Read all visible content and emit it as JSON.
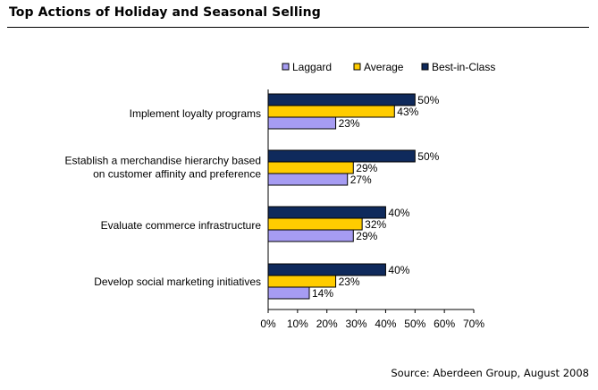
{
  "page": {
    "title": "Top Actions of Holiday and Seasonal Selling",
    "source": "Source: Aberdeen Group, August 2008"
  },
  "chart_data": {
    "type": "bar",
    "orientation": "horizontal",
    "title": "Top Actions of Holiday and Seasonal Selling",
    "categories": [
      [
        "Implement loyalty programs"
      ],
      [
        "Establish a merchandise hierarchy based",
        "on customer affinity and preference"
      ],
      [
        "Evaluate commerce infrastructure"
      ],
      [
        "Develop social marketing initiatives"
      ]
    ],
    "series": [
      {
        "name": "Best-in-Class",
        "color": "#0f2a5c",
        "values": [
          50,
          50,
          40,
          40
        ]
      },
      {
        "name": "Average",
        "color": "#ffcc00",
        "values": [
          43,
          29,
          32,
          23
        ]
      },
      {
        "name": "Laggard",
        "color": "#a69cf2",
        "values": [
          23,
          27,
          29,
          14
        ]
      }
    ],
    "legend_order": [
      "Laggard",
      "Average",
      "Best-in-Class"
    ],
    "legend_position": "top",
    "xlim": [
      0,
      70
    ],
    "xticks": [
      0,
      10,
      20,
      30,
      40,
      50,
      60,
      70
    ],
    "value_suffix": "%",
    "grid": false
  }
}
